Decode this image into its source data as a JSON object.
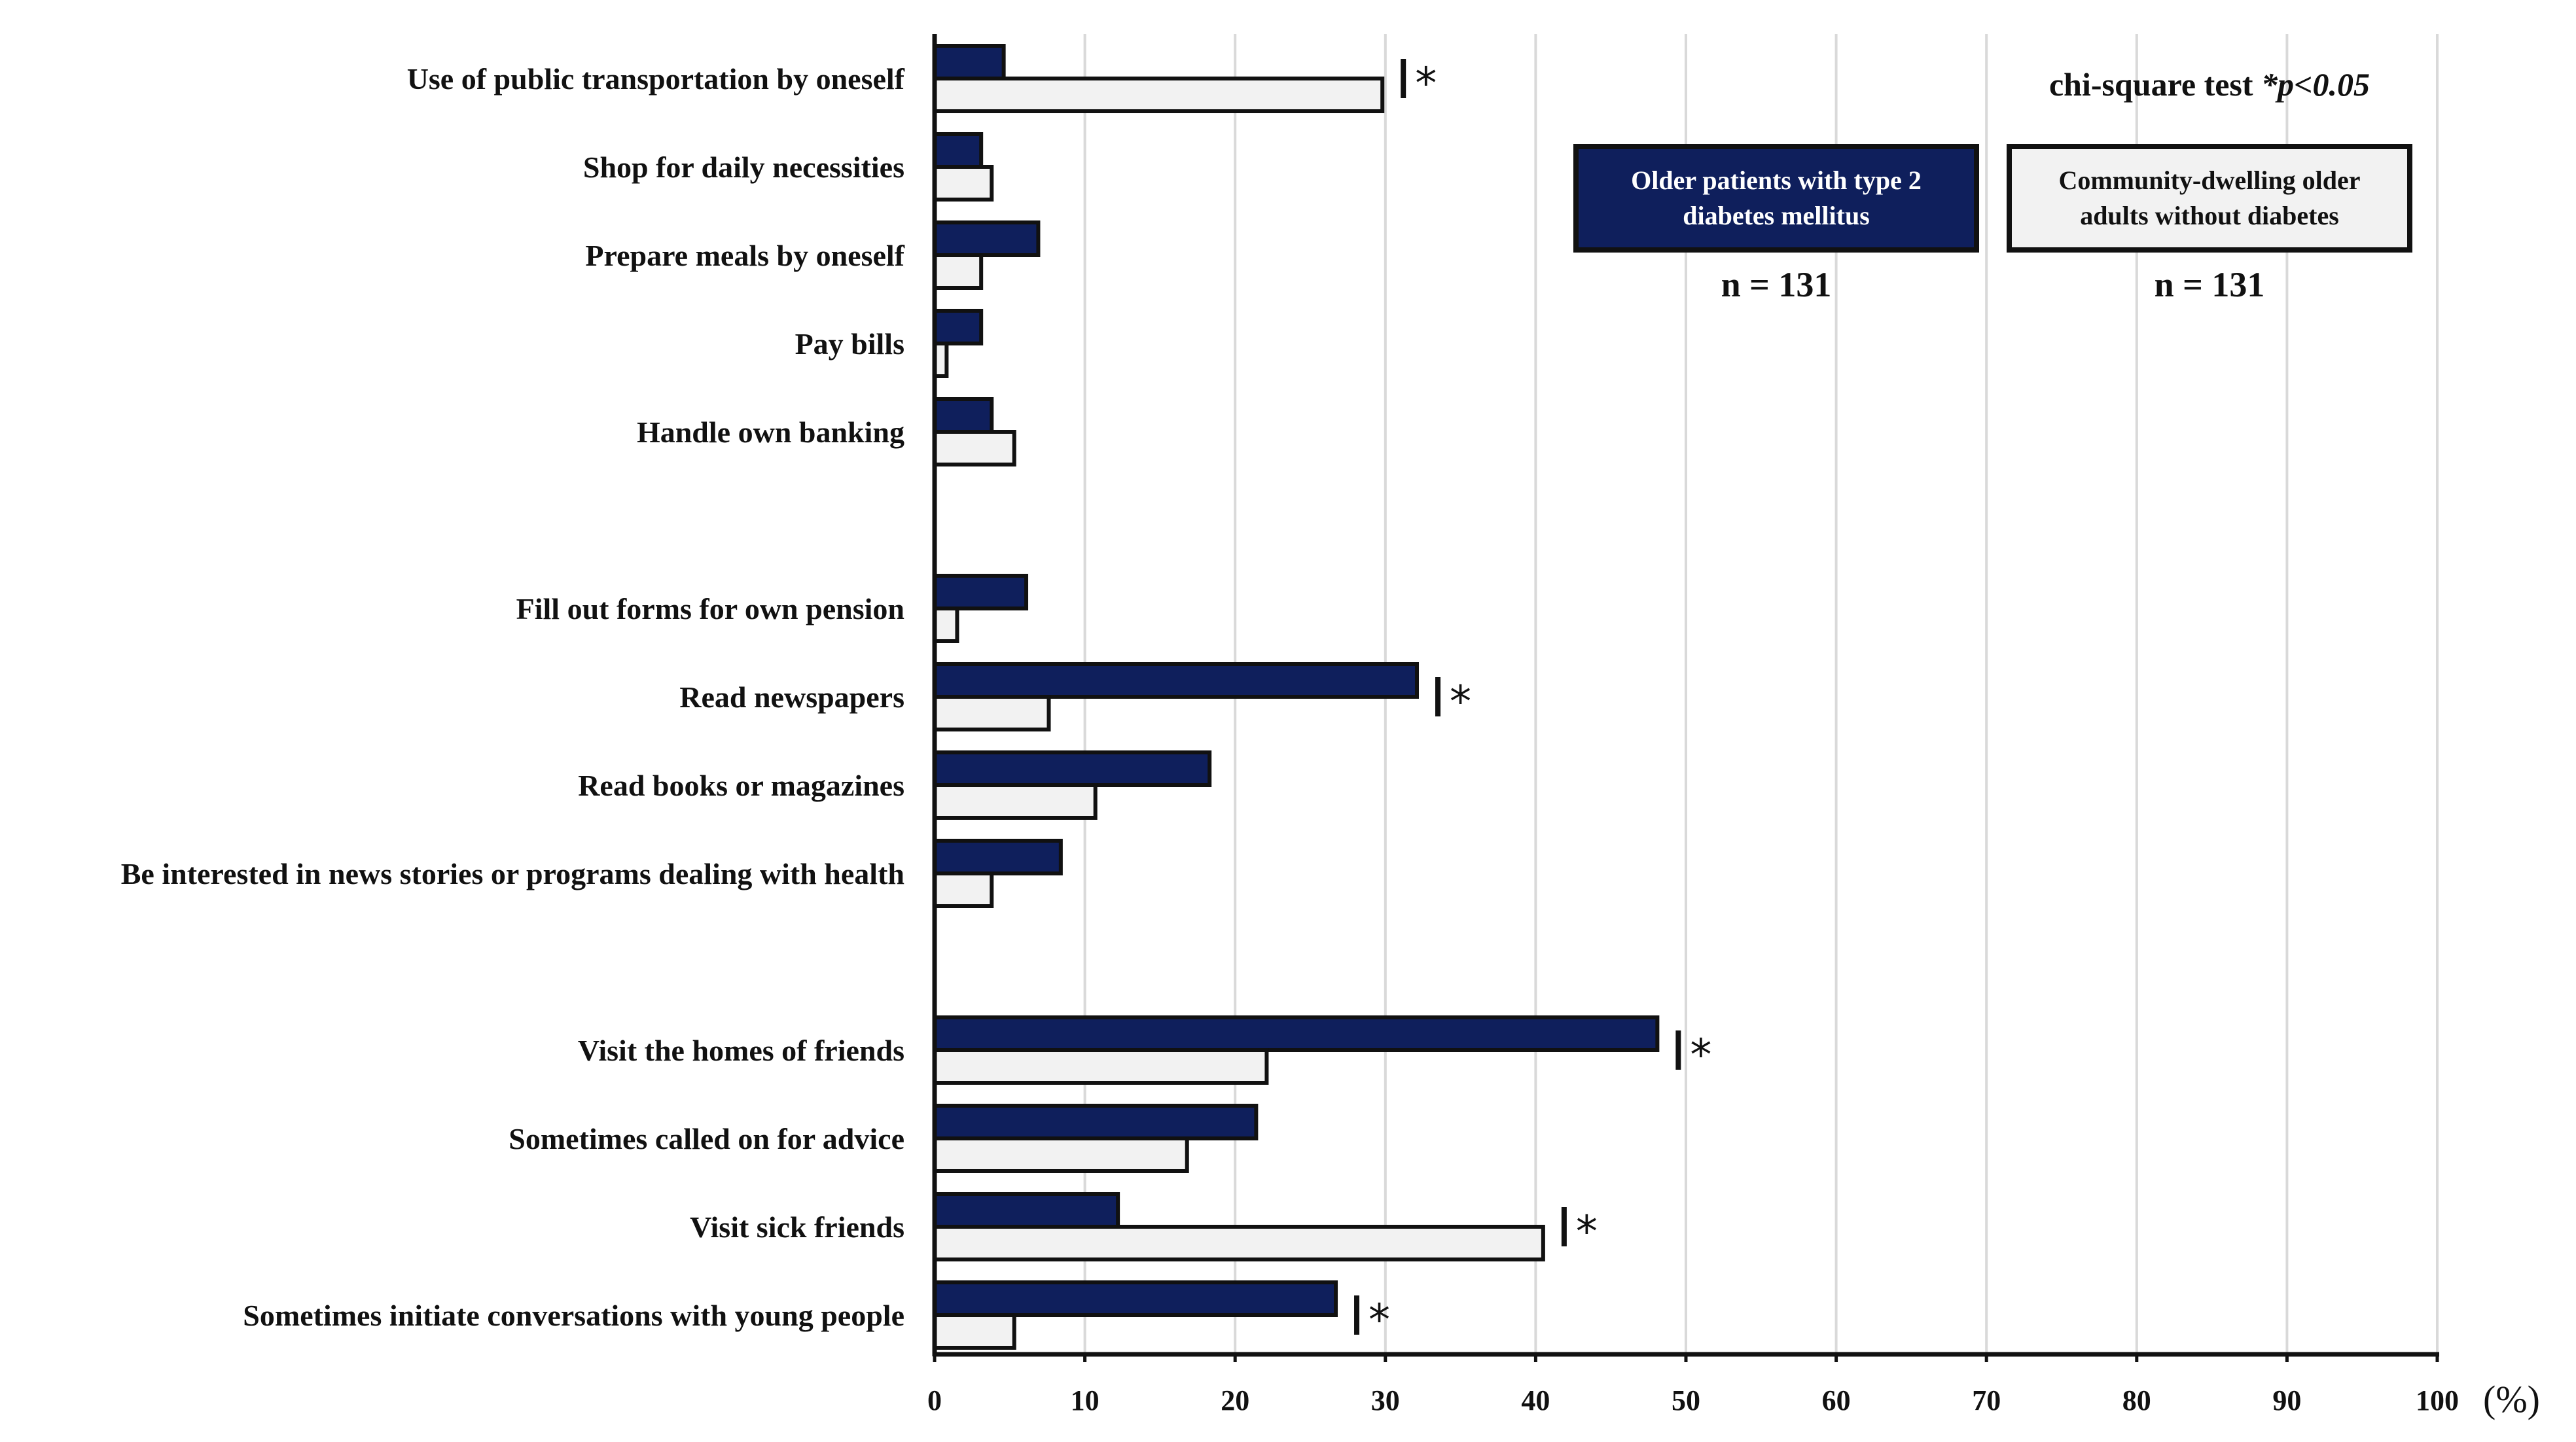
{
  "colors": {
    "series_dark": "#0f1f5c",
    "series_light": "#f2f2f2",
    "outline": "#111111",
    "grid": "#d9d9d9"
  },
  "annotation": {
    "test_label": "chi-square test ",
    "test_p": "*p<0.05"
  },
  "legend": [
    {
      "label": "Older patients with type 2 diabetes mellitus",
      "n": "n = 131"
    },
    {
      "label": "Community-dwelling older adults without diabetes",
      "n": "n = 131"
    }
  ],
  "chart_data": {
    "type": "bar",
    "orientation": "horizontal",
    "categories": [
      "Use of public transportation by oneself",
      "Shop for daily necessities",
      "Prepare meals by oneself",
      "Pay bills",
      "Handle own banking",
      "Fill out forms for own pension",
      "Read newspapers",
      "Read books or magazines",
      "Be interested in news stories or programs dealing with health",
      "Visit the homes of friends",
      "Sometimes called on for advice",
      "Visit sick friends",
      "Sometimes initiate conversations with young people"
    ],
    "series": [
      {
        "name": "Older patients with type 2 diabetes mellitus",
        "values": [
          4.6,
          3.1,
          6.9,
          3.1,
          3.8,
          6.1,
          32.1,
          18.3,
          8.4,
          48.1,
          21.4,
          12.2,
          26.7
        ]
      },
      {
        "name": "Community-dwelling older adults without diabetes",
        "values": [
          29.8,
          3.8,
          3.1,
          0.8,
          5.3,
          1.5,
          7.6,
          10.7,
          3.8,
          22.1,
          16.8,
          40.5,
          5.3
        ]
      }
    ],
    "groups": [
      [
        0,
        1,
        2,
        3,
        4
      ],
      [
        5,
        6,
        7,
        8
      ],
      [
        9,
        10,
        11,
        12
      ]
    ],
    "significant": [
      true,
      false,
      false,
      false,
      false,
      false,
      true,
      false,
      false,
      true,
      false,
      true,
      true
    ],
    "significance_marker": "*",
    "xlim": [
      0,
      100
    ],
    "xticks": [
      0,
      10,
      20,
      30,
      40,
      50,
      60,
      70,
      80,
      90,
      100
    ],
    "xunit": "(%)",
    "grid": "vertical",
    "legend_position": "top-right"
  }
}
